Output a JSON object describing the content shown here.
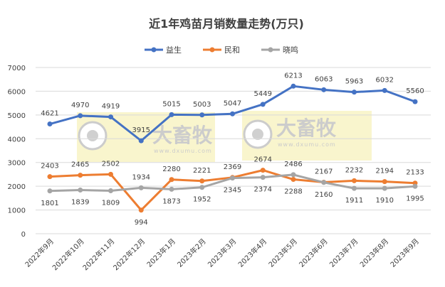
{
  "chart_data": {
    "type": "line",
    "title": "近1年鸡苗月销数量走势(万只)",
    "categories": [
      "2022年9月",
      "2022年10月",
      "2022年11月",
      "2022年12月",
      "2023年1月",
      "2023年2月",
      "2023年3月",
      "2023年4月",
      "2023年5月",
      "2023年6月",
      "2023年7月",
      "2023年8月",
      "2023年9月"
    ],
    "series": [
      {
        "name": "益生",
        "color": "#4472C4",
        "values": [
          4621,
          4970,
          4919,
          3915,
          5015,
          5003,
          5047,
          5449,
          6213,
          6063,
          5963,
          6032,
          5560
        ]
      },
      {
        "name": "民和",
        "color": "#ED7D31",
        "values": [
          2403,
          2465,
          2502,
          994,
          2280,
          2221,
          2369,
          2674,
          2288,
          2167,
          2232,
          2194,
          2133
        ]
      },
      {
        "name": "晓鸣",
        "color": "#A5A5A5",
        "values": [
          1801,
          1839,
          1809,
          1934,
          1873,
          1952,
          2345,
          2374,
          2486,
          2160,
          1911,
          1910,
          1995
        ]
      }
    ],
    "ylim": [
      0,
      7000
    ],
    "yticks": [
      0,
      1000,
      2000,
      3000,
      4000,
      5000,
      6000,
      7000
    ],
    "grid": true,
    "legend": "top",
    "watermark": {
      "brand": "大畜牧",
      "url": "www.dxumu.com"
    }
  }
}
